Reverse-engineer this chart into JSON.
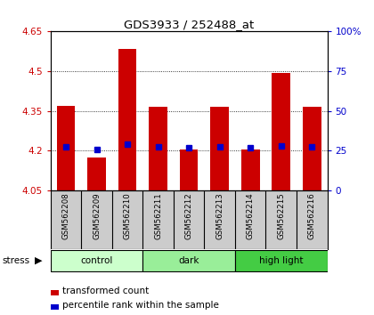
{
  "title": "GDS3933 / 252488_at",
  "samples": [
    "GSM562208",
    "GSM562209",
    "GSM562210",
    "GSM562211",
    "GSM562212",
    "GSM562213",
    "GSM562214",
    "GSM562215",
    "GSM562216"
  ],
  "red_values": [
    4.37,
    4.175,
    4.585,
    4.365,
    4.205,
    4.365,
    4.205,
    4.495,
    4.365
  ],
  "blue_values": [
    4.215,
    4.205,
    4.225,
    4.215,
    4.21,
    4.215,
    4.21,
    4.22,
    4.215
  ],
  "y_min": 4.05,
  "y_max": 4.65,
  "y_ticks": [
    4.05,
    4.2,
    4.35,
    4.5,
    4.65
  ],
  "y_tick_labels": [
    "4.05",
    "4.2",
    "4.35",
    "4.5",
    "4.65"
  ],
  "y2_ticks": [
    0,
    25,
    50,
    75,
    100
  ],
  "group_configs": [
    {
      "label": "control",
      "start": 0,
      "end": 2,
      "color": "#ccffcc"
    },
    {
      "label": "dark",
      "start": 3,
      "end": 5,
      "color": "#99ee99"
    },
    {
      "label": "high light",
      "start": 6,
      "end": 8,
      "color": "#44cc44"
    }
  ],
  "bar_color": "#cc0000",
  "dot_color": "#0000cc",
  "bg_color": "#ffffff",
  "xlabel_bg": "#cccccc",
  "grid_color": "#000000",
  "left_tick_color": "#cc0000",
  "right_tick_color": "#0000cc",
  "title_color": "#000000",
  "stress_label": "stress",
  "legend_red": "transformed count",
  "legend_blue": "percentile rank within the sample"
}
